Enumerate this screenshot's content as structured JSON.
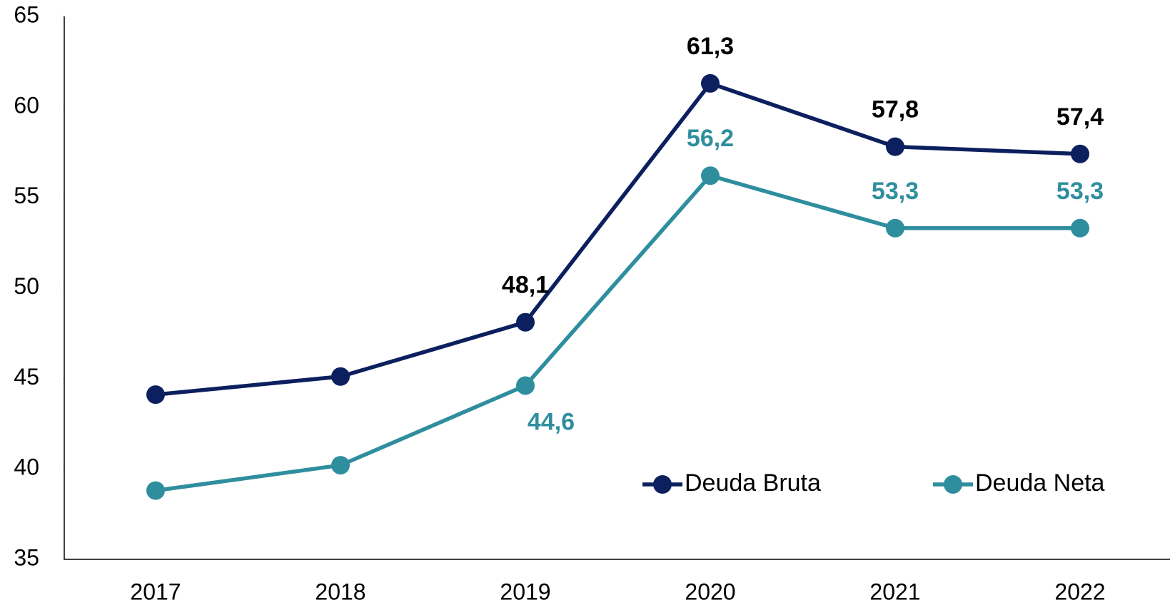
{
  "chart_data": {
    "type": "line",
    "categories": [
      "2017",
      "2018",
      "2019",
      "2020",
      "2021",
      "2022"
    ],
    "series": [
      {
        "name": "Deuda Bruta",
        "color": "#0c1f5e",
        "values": [
          44.1,
          45.1,
          48.1,
          61.3,
          57.8,
          57.4
        ],
        "value_labels": [
          null,
          null,
          "48,1",
          "61,3",
          "57,8",
          "57,4"
        ]
      },
      {
        "name": "Deuda Neta",
        "color": "#2f8e9e",
        "values": [
          38.8,
          40.2,
          44.6,
          56.2,
          53.3,
          53.3
        ],
        "value_labels": [
          null,
          null,
          "44,6",
          "56,2",
          "53,3",
          "53,3"
        ]
      }
    ],
    "ylim": [
      35,
      65
    ],
    "yticks": [
      35,
      40,
      45,
      50,
      55,
      60,
      65
    ],
    "grid": false,
    "legend": "lower right"
  }
}
